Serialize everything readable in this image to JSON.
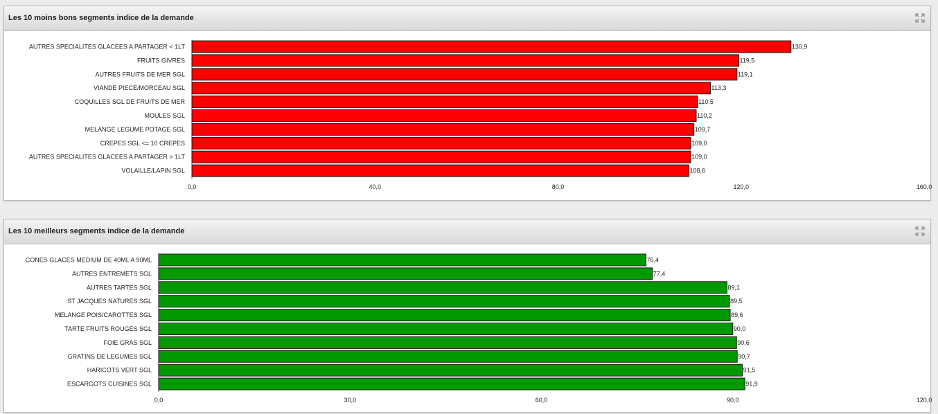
{
  "panels": [
    {
      "title": "Les 10 moins bons segments indice de la demande",
      "maximize_icon": "expand-arrows-icon",
      "chart_data": {
        "type": "bar",
        "orientation": "horizontal",
        "categories": [
          "AUTRES SPECIALITES GLACEES A PARTAGER < 1LT",
          "FRUITS GIVRES",
          "AUTRES FRUITS DE MER SGL",
          "VIANDE PIECE/MORCEAU SGL",
          "COQUILLES SGL DE FRUITS DE MER",
          "MOULES SGL",
          "MELANGE LEGUME POTAGE SGL",
          "CREPES SGL <= 10 CREPES",
          "AUTRES SPECIALITES GLACEES A PARTAGER > 1LT",
          "VOLAILLE/LAPIN SGL"
        ],
        "values": [
          130.9,
          119.5,
          119.1,
          113.3,
          110.5,
          110.2,
          109.7,
          109.0,
          109.0,
          108.6
        ],
        "value_labels": [
          "130,9",
          "119,5",
          "119,1",
          "113,3",
          "110,5",
          "110,2",
          "109,7",
          "109,0",
          "109,0",
          "108,6"
        ],
        "xlim": [
          0,
          160
        ],
        "ticks": [
          0,
          40,
          80,
          120,
          160
        ],
        "tick_labels": [
          "0,0",
          "40,0",
          "80,0",
          "120,0",
          "160,0"
        ],
        "bar_color": "#ff0000",
        "grid": false
      }
    },
    {
      "title": "Les 10 meilleurs segments indice de la demande",
      "maximize_icon": "expand-arrows-icon",
      "chart_data": {
        "type": "bar",
        "orientation": "horizontal",
        "categories": [
          "CONES GLACES MEDIUM DE 40ML A 90ML",
          "AUTRES ENTREMETS SGL",
          "AUTRES TARTES SGL",
          "ST JACQUES NATURES SGL",
          "MELANGE POIS/CAROTTES SGL",
          "TARTE FRUITS ROUGES SGL",
          "FOIE GRAS SGL",
          "GRATINS DE LEGUMES SGL",
          "HARICOTS VERT SGL",
          "ESCARGOTS CUISINES SGL"
        ],
        "values": [
          76.4,
          77.4,
          89.1,
          89.5,
          89.6,
          90.0,
          90.6,
          90.7,
          91.5,
          91.9
        ],
        "value_labels": [
          "76,4",
          "77,4",
          "89,1",
          "89,5",
          "89,6",
          "90,0",
          "90,6",
          "90,7",
          "91,5",
          "91,9"
        ],
        "xlim": [
          0,
          120
        ],
        "ticks": [
          0,
          30,
          60,
          90,
          120
        ],
        "tick_labels": [
          "0,0",
          "30,0",
          "60,0",
          "90,0",
          "120,0"
        ],
        "bar_color": "#009a00",
        "grid": false
      }
    }
  ]
}
